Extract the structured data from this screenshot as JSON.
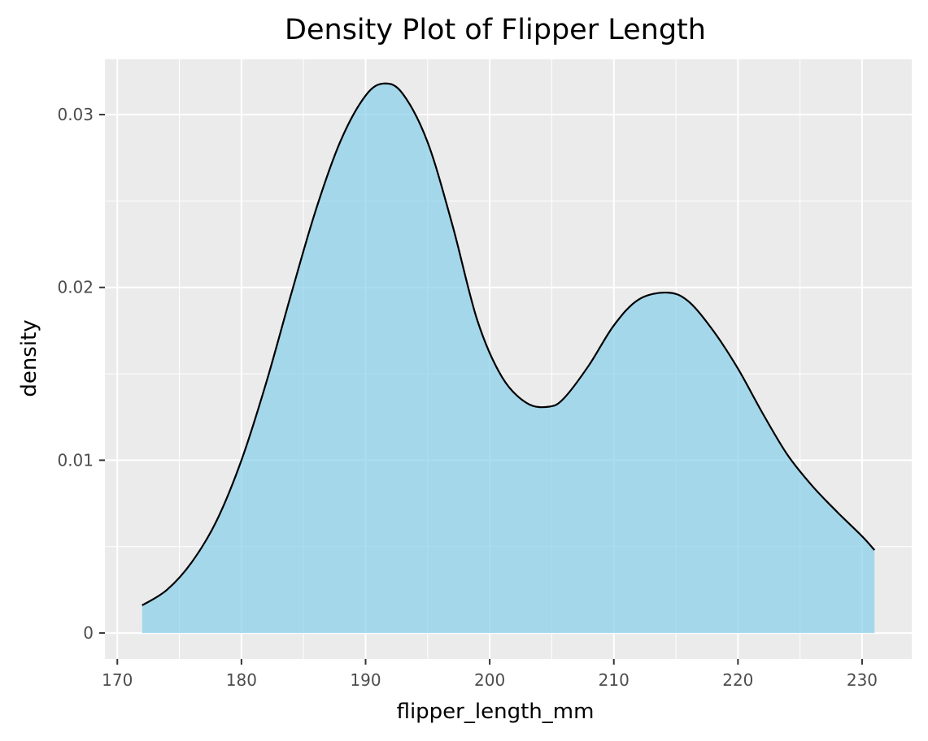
{
  "chart_data": {
    "type": "area",
    "title": "Density Plot of Flipper Length",
    "xlabel": "flipper_length_mm",
    "ylabel": "density",
    "xlim": [
      169,
      234
    ],
    "ylim": [
      -0.0015,
      0.0332
    ],
    "x_ticks": [
      170,
      180,
      190,
      200,
      210,
      220,
      230
    ],
    "x_tick_labels": [
      "170",
      "180",
      "190",
      "200",
      "210",
      "220",
      "230"
    ],
    "y_ticks": [
      0,
      0.01,
      0.02,
      0.03
    ],
    "y_tick_labels": [
      "0",
      "0.01",
      "0.02",
      "0.03"
    ],
    "grid": true,
    "legend": "none",
    "fill_color": "#87ceeb",
    "fill_opacity": 0.7,
    "line_color": "#000000",
    "panel_color": "#ebebeb",
    "series": [
      {
        "x": [
          172,
          174,
          176,
          178,
          180,
          182,
          184,
          186,
          188,
          190,
          191.5,
          193,
          195,
          197,
          199,
          201,
          203,
          204.8,
          206,
          208,
          210,
          212,
          214.3,
          216,
          218,
          220,
          222,
          224,
          226,
          228,
          230,
          231
        ],
        "y": [
          0.0016,
          0.0025,
          0.0041,
          0.0065,
          0.01,
          0.0145,
          0.0196,
          0.0245,
          0.0285,
          0.0311,
          0.0318,
          0.0312,
          0.0284,
          0.0236,
          0.0181,
          0.0148,
          0.0133,
          0.0131,
          0.0136,
          0.0155,
          0.0178,
          0.0193,
          0.0197,
          0.0192,
          0.0175,
          0.0153,
          0.0127,
          0.0103,
          0.0085,
          0.007,
          0.0056,
          0.0048
        ]
      }
    ]
  }
}
